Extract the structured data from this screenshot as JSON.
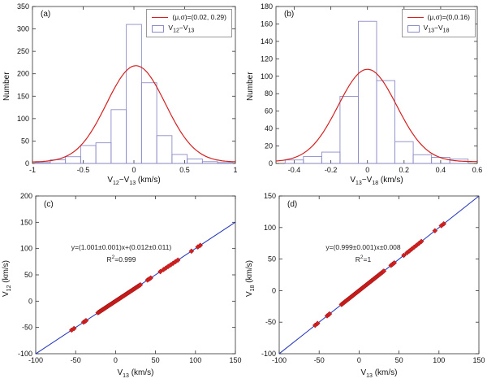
{
  "chart_data": [
    {
      "id": "a",
      "type": "bar",
      "panel_label": "(a)",
      "ylabel": "Number",
      "xlabel_parts": {
        "p1": "V",
        "sub1": "12",
        "p2": "−V",
        "sub2": "13",
        "p3": " (km/s)"
      },
      "xlim": [
        -1,
        1
      ],
      "ylim": [
        0,
        350
      ],
      "xticks": [
        -1,
        -0.5,
        0,
        0.5,
        1
      ],
      "yticks": [
        0,
        50,
        100,
        150,
        200,
        250,
        300,
        350
      ],
      "legend": {
        "curve": "(μ,σ)=(0.02, 0.29)",
        "hist_parts": {
          "p1": "V",
          "sub1": "12",
          "p2": "−V",
          "sub2": "13"
        }
      },
      "bin_width": 0.15,
      "bin_centers": [
        -0.9,
        -0.75,
        -0.6,
        -0.45,
        -0.3,
        -0.15,
        0,
        0.15,
        0.3,
        0.45,
        0.6,
        0.75,
        0.9
      ],
      "counts": [
        2,
        8,
        15,
        40,
        46,
        120,
        310,
        180,
        62,
        20,
        10,
        4,
        2
      ],
      "gaussian": {
        "mu": 0.02,
        "sigma": 0.29,
        "peak": 215,
        "baseline": 3
      },
      "colors": {
        "curve": "#d42020",
        "hist": "#8c8cc8"
      }
    },
    {
      "id": "b",
      "type": "bar",
      "panel_label": "(b)",
      "ylabel": "Number",
      "xlabel_parts": {
        "p1": "V",
        "sub1": "13",
        "p2": "−V",
        "sub2": "18",
        "p3": " (km/s)"
      },
      "xlim": [
        -0.5,
        0.6
      ],
      "ylim": [
        0,
        180
      ],
      "xticks": [
        -0.4,
        -0.2,
        0,
        0.2,
        0.4,
        0.6
      ],
      "yticks": [
        0,
        20,
        40,
        60,
        80,
        100,
        120,
        140,
        160,
        180
      ],
      "legend": {
        "curve": "(μ,σ)=(0,0.16)",
        "hist_parts": {
          "p1": "V",
          "sub1": "13",
          "p2": "−V",
          "sub2": "18"
        }
      },
      "bin_width": 0.1,
      "bin_centers": [
        -0.4,
        -0.3,
        -0.2,
        -0.1,
        0,
        0.1,
        0.2,
        0.3,
        0.4,
        0.5
      ],
      "counts": [
        4,
        8,
        13,
        77,
        163,
        95,
        25,
        10,
        7,
        5
      ],
      "gaussian": {
        "mu": 0,
        "sigma": 0.16,
        "peak": 106,
        "baseline": 2
      },
      "colors": {
        "curve": "#d42020",
        "hist": "#8c8cc8"
      }
    },
    {
      "id": "c",
      "type": "scatter",
      "panel_label": "(c)",
      "ylabel_parts": {
        "p1": "V",
        "sub1": "12",
        "p2": " (km/s)"
      },
      "xlabel_parts": {
        "p1": "V",
        "sub1": "13",
        "p2": " (km/s)"
      },
      "xlim": [
        -100,
        150
      ],
      "ylim": [
        -100,
        200
      ],
      "xticks": [
        -100,
        -50,
        0,
        50,
        100,
        150
      ],
      "yticks": [
        -100,
        -50,
        0,
        50,
        100,
        150,
        200
      ],
      "annotation": {
        "line1": "y=(1.001±0.001)x+(0.012±0.011)",
        "r_label": "R",
        "r_sup": "2",
        "r_rest": "=0.999"
      },
      "fit": {
        "slope": 1.001,
        "intercept": 0.012
      },
      "x": [
        -55,
        -52,
        -40,
        -38,
        -37,
        -22,
        -21,
        -20,
        -19,
        -18,
        -17,
        -16,
        -15,
        -14,
        -13,
        -12,
        -11,
        -10,
        -9,
        -8,
        -7,
        -6,
        -5,
        -4,
        -3,
        -2,
        -1,
        0,
        1,
        2,
        3,
        4,
        5,
        6,
        7,
        8,
        9,
        10,
        11,
        12,
        13,
        14,
        15,
        16,
        17,
        18,
        19,
        20,
        21,
        22,
        23,
        24,
        25,
        26,
        27,
        28,
        29,
        30,
        31,
        40,
        42,
        44,
        56,
        60,
        63,
        66,
        69,
        72,
        75,
        78,
        95,
        103,
        106
      ],
      "colors": {
        "line": "#2233bb",
        "marker": "#d42020",
        "marker_edge": "#a01010"
      }
    },
    {
      "id": "d",
      "type": "scatter",
      "panel_label": "(d)",
      "ylabel_parts": {
        "p1": "V",
        "sub1": "18",
        "p2": " (km/s)"
      },
      "xlabel_parts": {
        "p1": "V",
        "sub1": "13",
        "p2": " (km/s)"
      },
      "xlim": [
        -100,
        150
      ],
      "ylim": [
        -100,
        150
      ],
      "xticks": [
        -100,
        -50,
        0,
        50,
        100,
        150
      ],
      "yticks": [
        -100,
        -50,
        0,
        50,
        100,
        150
      ],
      "annotation": {
        "line1": "y=(0.999±0.001)x±0.008",
        "r_label": "R",
        "r_sup": "2",
        "r_rest": "=1"
      },
      "fit": {
        "slope": 0.999,
        "intercept": 0
      },
      "x": [
        -55,
        -52,
        -40,
        -38,
        -37,
        -22,
        -21,
        -20,
        -19,
        -18,
        -17,
        -16,
        -15,
        -14,
        -13,
        -12,
        -11,
        -10,
        -9,
        -8,
        -7,
        -6,
        -5,
        -4,
        -3,
        -2,
        -1,
        0,
        1,
        2,
        3,
        4,
        5,
        6,
        7,
        8,
        9,
        10,
        11,
        12,
        13,
        14,
        15,
        16,
        17,
        18,
        19,
        20,
        21,
        22,
        23,
        24,
        25,
        26,
        27,
        28,
        29,
        30,
        31,
        40,
        42,
        44,
        56,
        60,
        63,
        66,
        69,
        72,
        75,
        78,
        95,
        103,
        106
      ],
      "colors": {
        "line": "#2233bb",
        "marker": "#d42020",
        "marker_edge": "#a01010"
      }
    }
  ]
}
